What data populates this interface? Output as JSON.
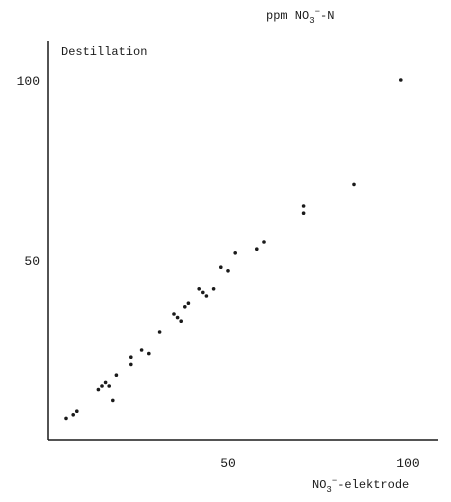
{
  "chart_data": {
    "type": "scatter",
    "title": "",
    "panel_label": "Destillation",
    "ylabel": {
      "main": "ppm NO",
      "sub": "3",
      "sup": "−",
      "tail": "-N"
    },
    "xlabel": {
      "main": "NO",
      "sub": "3",
      "sup": "−",
      "tail": "-elektrode"
    },
    "xlim": [
      0,
      110
    ],
    "ylim": [
      0,
      110
    ],
    "xticks": [
      {
        "value": 50,
        "label": "50"
      },
      {
        "value": 100,
        "label": "100"
      }
    ],
    "yticks": [
      {
        "value": 50,
        "label": "50"
      },
      {
        "value": 100,
        "label": "100"
      }
    ],
    "grid": false,
    "legend": "none",
    "point_color": "#1a1a1a",
    "axis_color": "#1a1a1a",
    "series": [
      {
        "points": [
          {
            "x": 5,
            "y": 6
          },
          {
            "x": 7,
            "y": 7
          },
          {
            "x": 8,
            "y": 8
          },
          {
            "x": 14,
            "y": 14
          },
          {
            "x": 15,
            "y": 15
          },
          {
            "x": 16,
            "y": 16
          },
          {
            "x": 17,
            "y": 15
          },
          {
            "x": 18,
            "y": 11
          },
          {
            "x": 19,
            "y": 18
          },
          {
            "x": 23,
            "y": 21
          },
          {
            "x": 23,
            "y": 23
          },
          {
            "x": 26,
            "y": 25
          },
          {
            "x": 28,
            "y": 24
          },
          {
            "x": 31,
            "y": 30
          },
          {
            "x": 35,
            "y": 35
          },
          {
            "x": 36,
            "y": 34
          },
          {
            "x": 37,
            "y": 33
          },
          {
            "x": 38,
            "y": 37
          },
          {
            "x": 39,
            "y": 38
          },
          {
            "x": 42,
            "y": 42
          },
          {
            "x": 43,
            "y": 41
          },
          {
            "x": 44,
            "y": 40
          },
          {
            "x": 46,
            "y": 42
          },
          {
            "x": 48,
            "y": 48
          },
          {
            "x": 50,
            "y": 47
          },
          {
            "x": 52,
            "y": 52
          },
          {
            "x": 58,
            "y": 53
          },
          {
            "x": 60,
            "y": 55
          },
          {
            "x": 71,
            "y": 63
          },
          {
            "x": 71,
            "y": 65
          },
          {
            "x": 85,
            "y": 71
          },
          {
            "x": 98,
            "y": 100
          }
        ]
      }
    ]
  }
}
